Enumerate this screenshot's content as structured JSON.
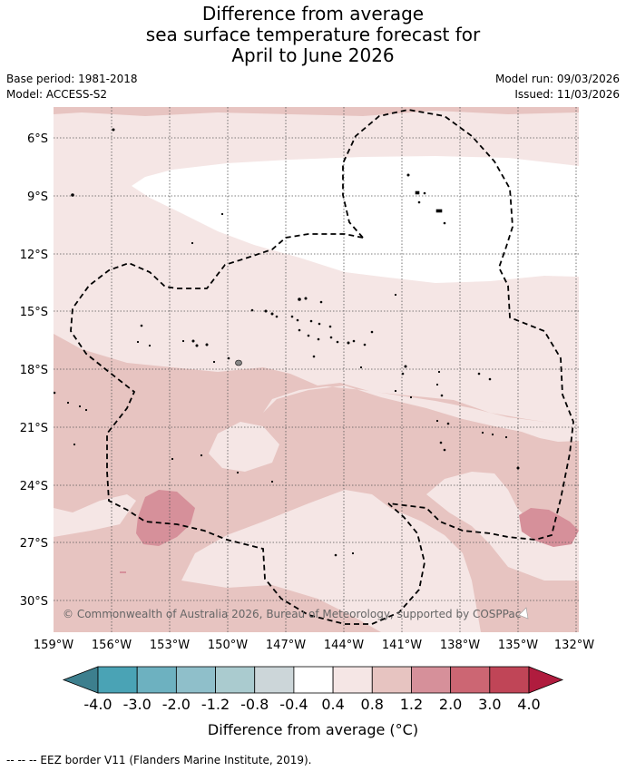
{
  "title_lines": [
    "Difference from average",
    "sea surface temperature forecast for",
    "April to June 2026"
  ],
  "base_period": "Base period: 1981-2018",
  "model": "Model: ACCESS-S2",
  "model_run": "Model run: 09/03/2026",
  "issued": "Issued: 11/03/2026",
  "copyright": "© Commonwealth of Australia 2026, Bureau of Meteorology, supported by COSPPac",
  "lat_labels": [
    "6°S",
    "9°S",
    "12°S",
    "15°S",
    "18°S",
    "21°S",
    "24°S",
    "27°S",
    "30°S"
  ],
  "lon_labels": [
    "159°W",
    "156°W",
    "153°W",
    "150°W",
    "147°W",
    "144°W",
    "141°W",
    "138°W",
    "135°W",
    "132°W"
  ],
  "colorbar": {
    "ticks": [
      "-4.0",
      "-3.0",
      "-2.0",
      "-1.2",
      "-0.8",
      "-0.4",
      "0.4",
      "0.8",
      "1.2",
      "2.0",
      "3.0",
      "4.0"
    ],
    "colors": [
      "#3d7f8e",
      "#4aa3b5",
      "#6db1c0",
      "#8fbfca",
      "#aacbcf",
      "#ccd6d9",
      "#ffffff",
      "#f5e6e5",
      "#e7c4c1",
      "#d6909a",
      "#cc6673",
      "#c04557",
      "#b01c3e"
    ],
    "label": "Difference from average (°C)"
  },
  "footnote": "-- -- -- EEZ border V11 (Flanders Marine Institute, 2019)."
}
